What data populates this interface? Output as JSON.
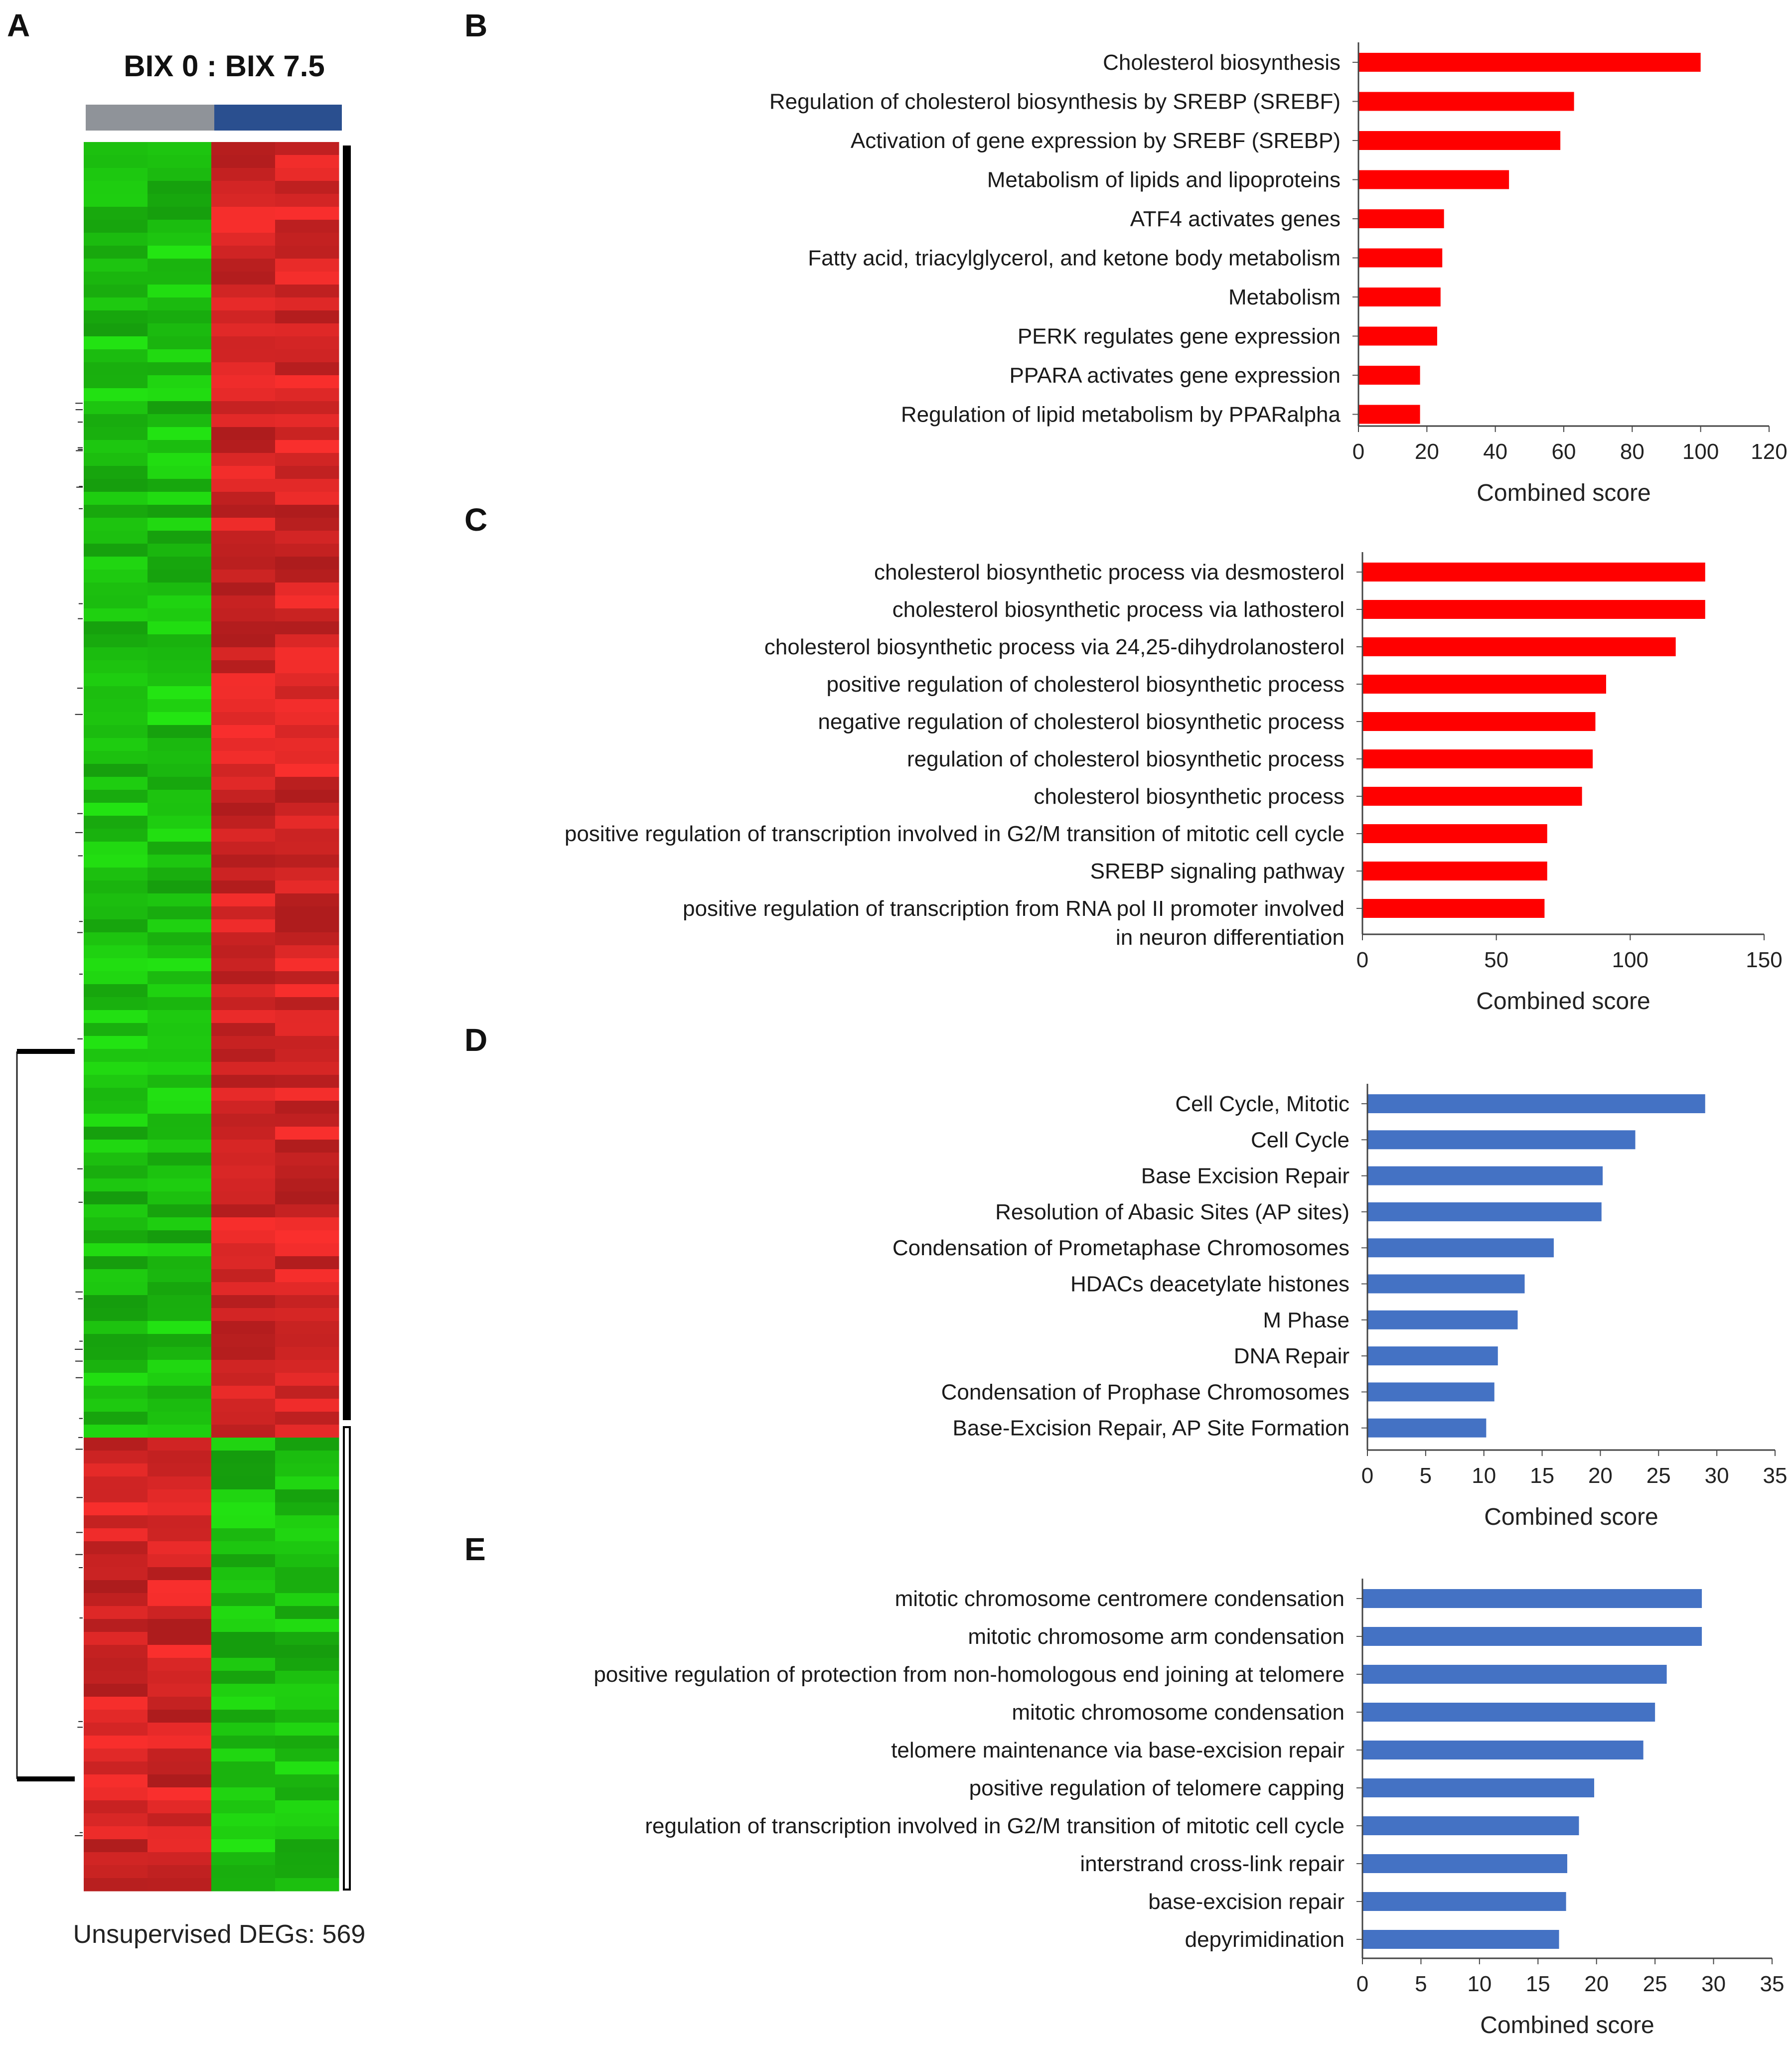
{
  "panels": {
    "a": "A",
    "b": "B",
    "c": "C",
    "d": "D",
    "e": "E"
  },
  "heatmap": {
    "title": "BIX 0 : BIX 7.5",
    "footer": "Unsupervised DEGs: 569",
    "group_colors": [
      "#8f9399",
      "#2a4f8f"
    ]
  },
  "chart_data": [
    {
      "type": "bar",
      "orientation": "horizontal",
      "categories": [
        "Cholesterol biosynthesis",
        "Regulation of cholesterol biosynthesis by SREBP (SREBF)",
        "Activation of gene expression by SREBF (SREBP)",
        "Metabolism of lipids and lipoproteins",
        "ATF4 activates genes",
        "Fatty acid, triacylglycerol, and ketone body metabolism",
        "Metabolism",
        "PERK regulates gene expression",
        "PPARA activates gene expression",
        "Regulation of lipid metabolism by PPARalpha"
      ],
      "values": [
        100,
        63,
        59,
        44,
        25,
        24.5,
        24,
        23,
        18,
        18
      ],
      "xlabel": "Combined score",
      "xlim": [
        0,
        120
      ],
      "xticks": [
        "0",
        "20",
        "40",
        "60",
        "80",
        "100",
        "120"
      ],
      "color": "#ff0000"
    },
    {
      "type": "bar",
      "orientation": "horizontal",
      "categories": [
        "cholesterol biosynthetic process via desmosterol",
        "cholesterol biosynthetic process via lathosterol",
        "cholesterol biosynthetic process via 24,25-dihydrolanosterol",
        "positive regulation of cholesterol biosynthetic process",
        "negative regulation of cholesterol biosynthetic process",
        "regulation of cholesterol biosynthetic process",
        "cholesterol biosynthetic process",
        "positive regulation of transcription involved in G2/M transition of mitotic cell cycle",
        "SREBP signaling pathway",
        "positive regulation of transcription from RNA pol II promoter involved in neuron differentiation"
      ],
      "values": [
        128,
        128,
        117,
        91,
        87,
        86,
        82,
        69,
        69,
        68
      ],
      "xlabel": "Combined score",
      "xlim": [
        0,
        150
      ],
      "xticks": [
        "0",
        "50",
        "100",
        "150"
      ],
      "color": "#ff0000"
    },
    {
      "type": "bar",
      "orientation": "horizontal",
      "categories": [
        "Cell Cycle, Mitotic",
        "Cell Cycle",
        "Base Excision Repair",
        "Resolution of Abasic Sites (AP sites)",
        "Condensation of Prometaphase Chromosomes",
        "HDACs deacetylate histones",
        "M Phase",
        "DNA Repair",
        "Condensation of Prophase Chromosomes",
        "Base-Excision Repair, AP Site Formation"
      ],
      "values": [
        29,
        23,
        20.2,
        20.1,
        16,
        13.5,
        12.9,
        11.2,
        10.9,
        10.2
      ],
      "xlabel": "Combined score",
      "xlim": [
        0,
        35
      ],
      "xticks": [
        "0",
        "5",
        "10",
        "15",
        "20",
        "25",
        "30",
        "35"
      ],
      "color": "#4472c4"
    },
    {
      "type": "bar",
      "orientation": "horizontal",
      "categories": [
        "mitotic chromosome centromere condensation",
        "mitotic chromosome arm condensation",
        "positive regulation of protection from non-homologous end joining at telomere",
        "mitotic chromosome condensation",
        "telomere maintenance via base-excision repair",
        "positive regulation of telomere capping",
        "regulation of transcription involved in G2/M transition of mitotic cell cycle",
        "interstrand cross-link repair",
        "base-excision repair",
        "depyrimidination"
      ],
      "values": [
        29,
        29,
        26,
        25,
        24,
        19.8,
        18.5,
        17.5,
        17.4,
        16.8
      ],
      "xlabel": "Combined score",
      "xlim": [
        0,
        35
      ],
      "xticks": [
        "0",
        "5",
        "10",
        "15",
        "20",
        "25",
        "30",
        "35"
      ],
      "color": "#4472c4"
    }
  ]
}
